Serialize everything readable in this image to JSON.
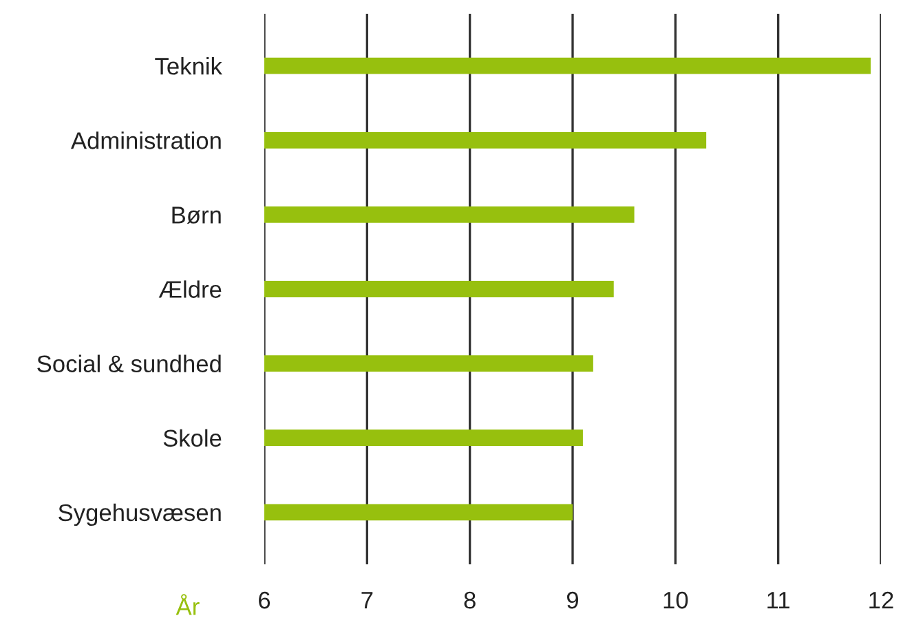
{
  "chart_data": {
    "type": "bar",
    "orientation": "horizontal",
    "xlabel": "År",
    "categories": [
      "Teknik",
      "Administration",
      "Børn",
      "Ældre",
      "Social & sundhed",
      "Skole",
      "Sygehusvæsen"
    ],
    "values": [
      11.9,
      10.3,
      9.6,
      9.4,
      9.2,
      9.1,
      9.0
    ],
    "color": "#97c00e",
    "xlim": [
      6,
      12
    ],
    "xticks": [
      6,
      7,
      8,
      9,
      10,
      11,
      12
    ],
    "grid": "x"
  }
}
